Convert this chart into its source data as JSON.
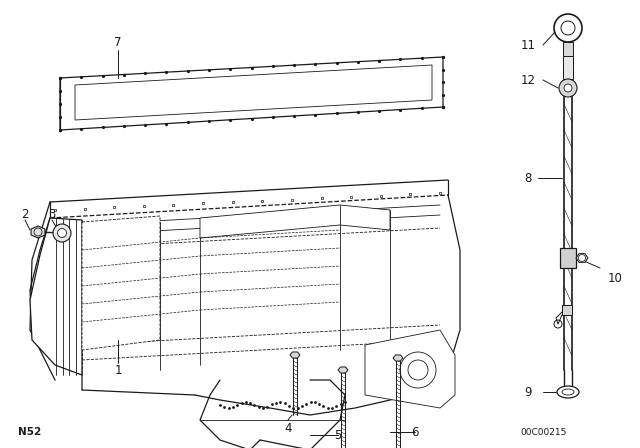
{
  "bg_color": "#ffffff",
  "line_color": "#1a1a1a",
  "part_code": "N52",
  "footer_code": "00C00215",
  "figsize": [
    6.4,
    4.48
  ],
  "dpi": 100
}
